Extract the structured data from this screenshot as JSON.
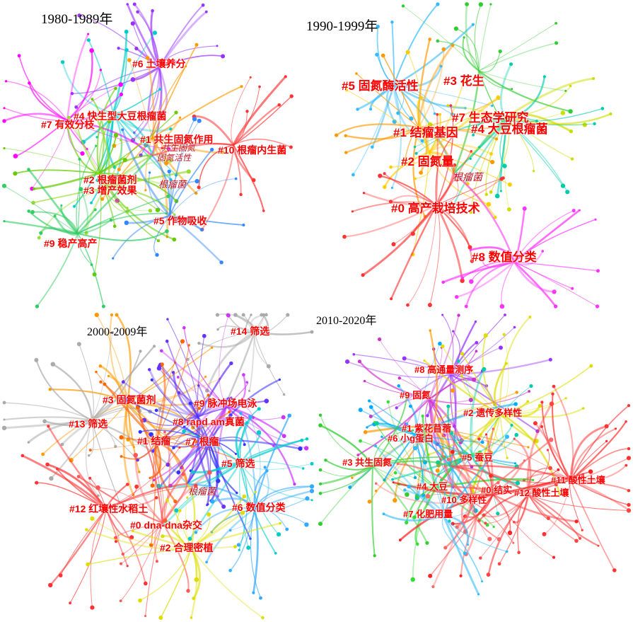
{
  "panels": [
    {
      "period": "1980-1989年",
      "clusters": [
        {
          "id": "#6",
          "name": "土壤养分",
          "color": "#9933ff"
        },
        {
          "id": "#4",
          "name": "快生型大豆根瘤菌",
          "color": "#00cccc"
        },
        {
          "id": "#7",
          "name": "有效分枝",
          "color": "#ff00ff"
        },
        {
          "id": "#1",
          "name": "共生固氮作用",
          "color": "#ff9900"
        },
        {
          "id": "#10",
          "name": "根瘤内生菌",
          "color": "#ff3333"
        },
        {
          "id": "#2",
          "name": "根瘤菌剂",
          "color": "#66cc00"
        },
        {
          "id": "#3",
          "name": "增产效果",
          "color": "#99dd33"
        },
        {
          "id": "#5",
          "name": "作物吸收",
          "color": "#3388ff"
        },
        {
          "id": "#9",
          "name": "稳产高产",
          "color": "#33cc66"
        }
      ],
      "center_terms": [
        "根瘤菌",
        "共生固氮",
        "固氮活性"
      ]
    },
    {
      "period": "1990-1999年",
      "clusters": [
        {
          "id": "#5",
          "name": "固氮酶活性",
          "color": "#33bbff"
        },
        {
          "id": "#3",
          "name": "花生",
          "color": "#33cc33"
        },
        {
          "id": "#7",
          "name": "生态学研究",
          "color": "#ccdd00"
        },
        {
          "id": "#1",
          "name": "结瘤基因",
          "color": "#ff9900"
        },
        {
          "id": "#4",
          "name": "大豆根瘤菌",
          "color": "#00ccaa"
        },
        {
          "id": "#2",
          "name": "固氮量",
          "color": "#ffcc00"
        },
        {
          "id": "#0",
          "name": "高产栽培技术",
          "color": "#ff3333"
        },
        {
          "id": "#8",
          "name": "数值分类",
          "color": "#ff33ff"
        }
      ],
      "center_terms": [
        "根瘤菌"
      ]
    },
    {
      "period": "2000-2009年",
      "clusters": [
        {
          "id": "#14",
          "name": "筛选",
          "color": "#aaaaaa"
        },
        {
          "id": "#3",
          "name": "固氮菌剂",
          "color": "#ff9900"
        },
        {
          "id": "#9",
          "name": "脉冲场电泳",
          "color": "#cc33ff"
        },
        {
          "id": "#13",
          "name": "筛选",
          "color": "#aaaaaa"
        },
        {
          "id": "#8",
          "name": "rapd am真菌",
          "color": "#6633ff"
        },
        {
          "id": "#1",
          "name": "结瘤",
          "color": "#ff6600"
        },
        {
          "id": "#7",
          "name": "根瘤",
          "color": "#3333ff"
        },
        {
          "id": "#5",
          "name": "筛选",
          "color": "#00cccc"
        },
        {
          "id": "#6",
          "name": "数值分类",
          "color": "#33aaff"
        },
        {
          "id": "#12",
          "name": "红壤性水稻土",
          "color": "#ff3333"
        },
        {
          "id": "#0",
          "name": "dna-dna杂交",
          "color": "#ff5555"
        },
        {
          "id": "#2",
          "name": "合理密植",
          "color": "#dddd00"
        }
      ],
      "center_terms": [
        "根瘤菌"
      ]
    },
    {
      "period": "2010-2020年",
      "clusters": [
        {
          "id": "#8",
          "name": "高通量测序",
          "color": "#9933ff"
        },
        {
          "id": "#9",
          "name": "固氮",
          "color": "#cc33cc"
        },
        {
          "id": "#2",
          "name": "遗传多样性",
          "color": "#dddd00"
        },
        {
          "id": "#1",
          "name": "紫花苜蓿",
          "color": "#ff9900"
        },
        {
          "id": "#6",
          "name": "小g蛋白",
          "color": "#00aaff"
        },
        {
          "id": "#5",
          "name": "蚕豆",
          "color": "#00ccaa"
        },
        {
          "id": "#3",
          "name": "共生固氮",
          "color": "#33cc33"
        },
        {
          "id": "#11",
          "name": "酸性土壤",
          "color": "#ff3333"
        },
        {
          "id": "#4",
          "name": "大豆",
          "color": "#33dd33"
        },
        {
          "id": "#0",
          "name": "结实",
          "color": "#ff2222"
        },
        {
          "id": "#12",
          "name": "酸性土壤",
          "color": "#ff4444"
        },
        {
          "id": "#10",
          "name": "多样性",
          "color": "#ff6666"
        },
        {
          "id": "#7",
          "name": "化肥用量",
          "color": "#33bbff"
        }
      ],
      "center_terms": []
    }
  ]
}
